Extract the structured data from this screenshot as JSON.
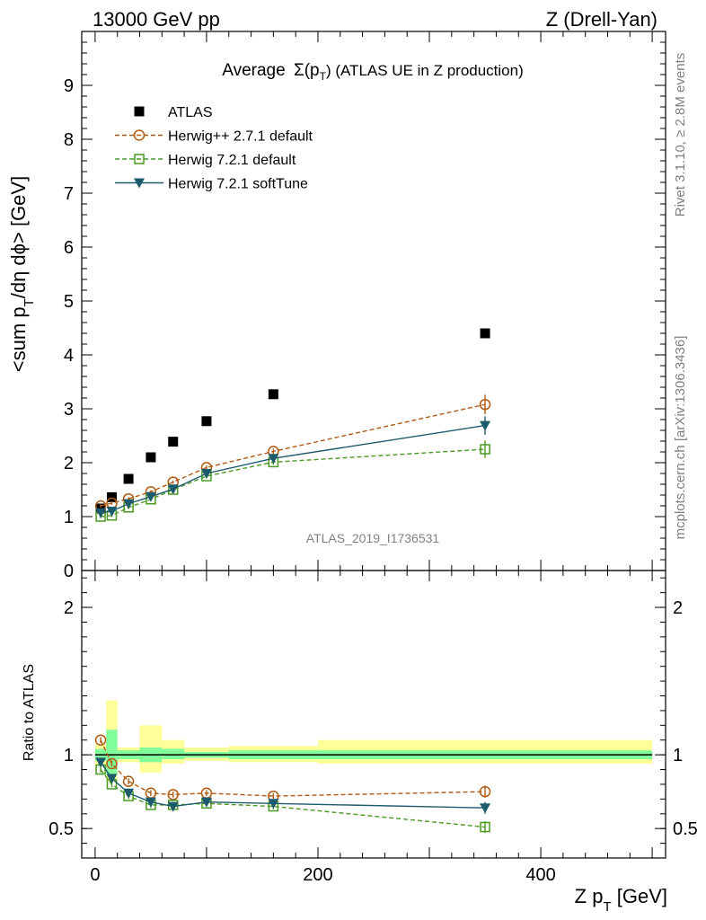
{
  "header": {
    "left": "13000 GeV pp",
    "right": "Z (Drell-Yan)"
  },
  "side_text": {
    "rivet": "Rivet 3.1.10, ≥ 2.8M events",
    "mcplots": "mcplots.cern.ch [arXiv:1306.3436]"
  },
  "colors": {
    "atlas": "#000000",
    "herwigpp": "#b05a10",
    "herwig721": "#4a9a20",
    "softtune": "#1c5a6e",
    "band_inner": "#80ff9a",
    "band_outer": "#ffff99"
  },
  "chart_data": [
    {
      "id": "main",
      "type": "scatter",
      "title_prefix": "Average",
      "title_sigma": "Σ(p",
      "title_sub": "T",
      "title_rest": ") (ATLAS UE in Z production)",
      "ylabel": "<sum p_T/dη dϕ> [GeV]",
      "ylabel_parts": [
        "<sum p",
        "T",
        "/dη dϕ> [GeV]"
      ],
      "watermark": "ATLAS_2019_I1736531",
      "xlim": [
        -12,
        512
      ],
      "ylim": [
        0,
        10
      ],
      "yticks": [
        0,
        1,
        2,
        3,
        4,
        5,
        6,
        7,
        8,
        9
      ],
      "x": [
        5,
        15,
        30,
        50,
        70,
        100,
        160,
        350
      ],
      "series": [
        {
          "name": "ATLAS",
          "style": "data",
          "values": [
            1.15,
            1.36,
            1.7,
            2.1,
            2.39,
            2.77,
            3.27,
            4.4
          ]
        },
        {
          "name": "Herwig++ 2.7.1 default",
          "style": "herwigpp",
          "values": [
            1.2,
            1.25,
            1.33,
            1.46,
            1.64,
            1.91,
            2.21,
            3.08
          ],
          "errors": [
            0.03,
            0.03,
            0.03,
            0.03,
            0.03,
            0.04,
            0.05,
            0.18
          ]
        },
        {
          "name": "Herwig 7.2.1 default",
          "style": "herwig721",
          "values": [
            1.0,
            1.02,
            1.17,
            1.32,
            1.5,
            1.75,
            2.01,
            2.25
          ],
          "errors": [
            0.03,
            0.03,
            0.03,
            0.03,
            0.03,
            0.04,
            0.05,
            0.16
          ]
        },
        {
          "name": "Herwig 7.2.1 softTune",
          "style": "softtune",
          "values": [
            1.07,
            1.1,
            1.24,
            1.37,
            1.51,
            1.8,
            2.08,
            2.69
          ],
          "errors": [
            0.03,
            0.03,
            0.03,
            0.03,
            0.03,
            0.04,
            0.05,
            0.17
          ]
        }
      ]
    },
    {
      "id": "ratio",
      "type": "scatter",
      "ylabel": "Ratio to ATLAS",
      "xlabel_parts": [
        "Z p",
        "T",
        " [GeV]"
      ],
      "xlim": [
        -12,
        512
      ],
      "ylim": [
        0.3,
        2.25
      ],
      "yticks": [
        0.5,
        1,
        2
      ],
      "ytick_labels": [
        "0.5",
        "1",
        "2"
      ],
      "xticks": [
        0,
        200,
        400
      ],
      "x": [
        5,
        15,
        30,
        50,
        70,
        100,
        160,
        350
      ],
      "series": [
        {
          "name": "Herwig++ 2.7.1 default",
          "style": "herwigpp",
          "values": [
            1.1,
            0.94,
            0.82,
            0.74,
            0.73,
            0.74,
            0.72,
            0.75
          ],
          "errors": [
            0.02,
            0.02,
            0.02,
            0.02,
            0.02,
            0.02,
            0.02,
            0.04
          ]
        },
        {
          "name": "Herwig 7.2.1 default",
          "style": "herwig721",
          "values": [
            0.9,
            0.8,
            0.72,
            0.66,
            0.66,
            0.67,
            0.65,
            0.51
          ],
          "errors": [
            0.02,
            0.02,
            0.02,
            0.02,
            0.02,
            0.02,
            0.02,
            0.04
          ]
        },
        {
          "name": "Herwig 7.2.1 softTune",
          "style": "softtune",
          "values": [
            0.95,
            0.84,
            0.74,
            0.68,
            0.65,
            0.68,
            0.67,
            0.64
          ],
          "errors": [
            0.02,
            0.02,
            0.02,
            0.02,
            0.02,
            0.02,
            0.02,
            0.04
          ]
        }
      ],
      "bands": [
        {
          "x0": 0,
          "x1": 10,
          "inner": [
            0.96,
            1.04
          ],
          "outer": [
            0.93,
            1.07
          ]
        },
        {
          "x0": 10,
          "x1": 20,
          "inner": [
            0.87,
            1.17
          ],
          "outer": [
            0.82,
            1.37
          ]
        },
        {
          "x0": 20,
          "x1": 40,
          "inner": [
            0.97,
            1.03
          ],
          "outer": [
            0.95,
            1.05
          ]
        },
        {
          "x0": 40,
          "x1": 60,
          "inner": [
            0.95,
            1.05
          ],
          "outer": [
            0.88,
            1.2
          ]
        },
        {
          "x0": 60,
          "x1": 80,
          "inner": [
            0.97,
            1.04
          ],
          "outer": [
            0.94,
            1.1
          ]
        },
        {
          "x0": 80,
          "x1": 120,
          "inner": [
            0.98,
            1.02
          ],
          "outer": [
            0.96,
            1.05
          ]
        },
        {
          "x0": 120,
          "x1": 200,
          "inner": [
            0.97,
            1.03
          ],
          "outer": [
            0.95,
            1.06
          ]
        },
        {
          "x0": 200,
          "x1": 500,
          "inner": [
            0.97,
            1.03
          ],
          "outer": [
            0.94,
            1.1
          ]
        }
      ]
    }
  ]
}
